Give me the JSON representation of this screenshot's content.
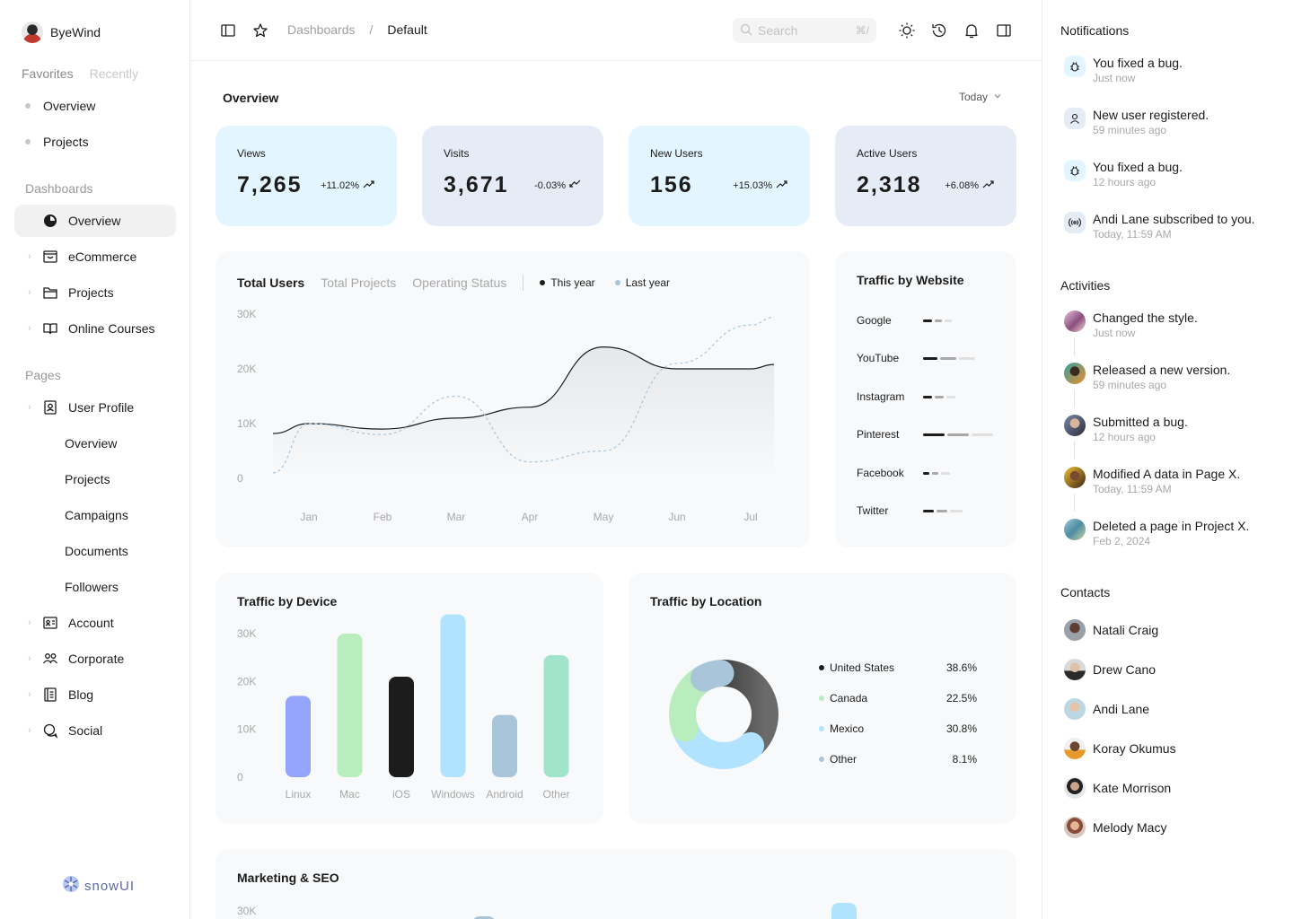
{
  "brand": {
    "name": "ByeWind",
    "footer_logo": "snowUI"
  },
  "sidebar": {
    "tabs": [
      "Favorites",
      "Recently"
    ],
    "favorites": [
      "Overview",
      "Projects"
    ],
    "dashboards_label": "Dashboards",
    "dashboards": [
      {
        "label": "Overview",
        "icon": "pie-chart-icon",
        "active": true
      },
      {
        "label": "eCommerce",
        "icon": "shopping-bag-icon"
      },
      {
        "label": "Projects",
        "icon": "folder-icon"
      },
      {
        "label": "Online Courses",
        "icon": "book-open-icon"
      }
    ],
    "pages_label": "Pages",
    "user_profile": {
      "label": "User Profile",
      "icon": "user-card-icon",
      "children": [
        "Overview",
        "Projects",
        "Campaigns",
        "Documents",
        "Followers"
      ]
    },
    "pages": [
      {
        "label": "Account",
        "icon": "id-card-icon"
      },
      {
        "label": "Corporate",
        "icon": "users-icon"
      },
      {
        "label": "Blog",
        "icon": "notebook-icon"
      },
      {
        "label": "Social",
        "icon": "chat-icon"
      }
    ]
  },
  "header": {
    "breadcrumb": [
      "Dashboards",
      "/",
      "Default"
    ],
    "search_placeholder": "Search",
    "search_shortcut": "⌘/"
  },
  "overview": {
    "title": "Overview",
    "range": "Today",
    "kpis": [
      {
        "label": "Views",
        "value": "7,265",
        "change": "+11.02%",
        "trend": "up",
        "bg": "#e3f5ff"
      },
      {
        "label": "Visits",
        "value": "3,671",
        "change": "-0.03%",
        "trend": "down",
        "bg": "#e5ecf6"
      },
      {
        "label": "New Users",
        "value": "156",
        "change": "+15.03%",
        "trend": "up",
        "bg": "#e3f5ff"
      },
      {
        "label": "Active Users",
        "value": "2,318",
        "change": "+6.08%",
        "trend": "up",
        "bg": "#e5ecf6"
      }
    ]
  },
  "total_users": {
    "tabs": [
      "Total Users",
      "Total Projects",
      "Operating Status"
    ],
    "legend": [
      "This year",
      "Last year"
    ]
  },
  "traffic_website": {
    "title": "Traffic by Website",
    "sites": [
      "Google",
      "YouTube",
      "Instagram",
      "Pinterest",
      "Facebook",
      "Twitter"
    ]
  },
  "traffic_device": {
    "title": "Traffic by Device"
  },
  "traffic_location": {
    "title": "Traffic by Location",
    "rows": [
      {
        "name": "United States",
        "pct": "38.6%"
      },
      {
        "name": "Canada",
        "pct": "22.5%"
      },
      {
        "name": "Mexico",
        "pct": "30.8%"
      },
      {
        "name": "Other",
        "pct": "8.1%"
      }
    ]
  },
  "marketing": {
    "title": "Marketing & SEO",
    "tick_top": "30K"
  },
  "notifications": {
    "title": "Notifications",
    "items": [
      {
        "text": "You fixed a bug.",
        "time": "Just now",
        "icon": "bug-icon"
      },
      {
        "text": "New user registered.",
        "time": "59 minutes ago",
        "icon": "user-icon"
      },
      {
        "text": "You fixed a bug.",
        "time": "12 hours ago",
        "icon": "bug-icon"
      },
      {
        "text": "Andi Lane subscribed to you.",
        "time": "Today, 11:59 AM",
        "icon": "broadcast-icon"
      }
    ]
  },
  "activities": {
    "title": "Activities",
    "items": [
      {
        "text": "Changed the style.",
        "time": "Just now"
      },
      {
        "text": "Released a new version.",
        "time": "59 minutes ago"
      },
      {
        "text": "Submitted a bug.",
        "time": "12 hours ago"
      },
      {
        "text": "Modified A data in Page X.",
        "time": "Today, 11:59 AM"
      },
      {
        "text": "Deleted a page in Project X.",
        "time": "Feb 2, 2024"
      }
    ]
  },
  "contacts": {
    "title": "Contacts",
    "items": [
      "Natali Craig",
      "Drew Cano",
      "Andi Lane",
      "Koray Okumus",
      "Kate Morrison",
      "Melody Macy"
    ]
  },
  "colors": {
    "accent_blue": "#a8c5da",
    "purple_bar": "#95a4fc",
    "green_bar": "#baedbd",
    "black": "#1c1c1c",
    "light_blue_bar": "#b1e3ff",
    "mint_bar": "#a1e3cb"
  },
  "chart_data": [
    {
      "type": "line",
      "title": "Total Users",
      "x": [
        "Jan",
        "Feb",
        "Mar",
        "Apr",
        "May",
        "Jun",
        "Jul"
      ],
      "yticks": [
        "0",
        "10K",
        "20K",
        "30K"
      ],
      "ylim": [
        0,
        30000
      ],
      "series": [
        {
          "name": "This year",
          "values": [
            10000,
            9000,
            11000,
            13000,
            24000,
            20000,
            20000
          ]
        },
        {
          "name": "Last year",
          "values": [
            10000,
            8000,
            15000,
            3000,
            5000,
            21000,
            28000
          ]
        }
      ]
    },
    {
      "type": "bar",
      "title": "Traffic by Device",
      "categories": [
        "Linux",
        "Mac",
        "iOS",
        "Windows",
        "Android",
        "Other"
      ],
      "values": [
        17000,
        30000,
        21000,
        34000,
        13000,
        25500
      ],
      "yticks": [
        "0",
        "10K",
        "20K",
        "30K"
      ],
      "ylim": [
        0,
        34000
      ],
      "colors": [
        "#95a4fc",
        "#baedbd",
        "#1c1c1c",
        "#b1e3ff",
        "#a8c5da",
        "#a1e3cb"
      ]
    },
    {
      "type": "pie",
      "title": "Traffic by Location",
      "labels": [
        "United States",
        "Canada",
        "Mexico",
        "Other"
      ],
      "values": [
        38.6,
        22.5,
        30.8,
        8.1
      ],
      "colors": [
        "#1c1c1c",
        "#baedbd",
        "#b1e3ff",
        "#a8c5da"
      ]
    }
  ]
}
